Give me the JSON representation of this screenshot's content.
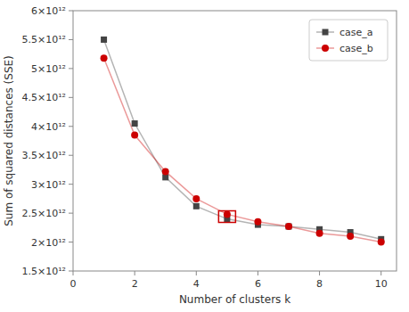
{
  "chart_data": {
    "type": "line",
    "xlabel": "Number of clusters k",
    "ylabel": "Sum of squared distances (SSE)",
    "x": [
      1,
      2,
      3,
      4,
      5,
      6,
      7,
      8,
      9,
      10
    ],
    "series": [
      {
        "name": "case_a",
        "color": "#444444",
        "marker": "square",
        "values": [
          5500000000000.0,
          4050000000000.0,
          3120000000000.0,
          2620000000000.0,
          2400000000000.0,
          2300000000000.0,
          2270000000000.0,
          2220000000000.0,
          2170000000000.0,
          2050000000000.0
        ]
      },
      {
        "name": "case_b",
        "color": "#cc0000",
        "marker": "circle",
        "values": [
          5180000000000.0,
          3850000000000.0,
          3220000000000.0,
          2750000000000.0,
          2480000000000.0,
          2350000000000.0,
          2270000000000.0,
          2150000000000.0,
          2100000000000.0,
          2000000000000.0
        ]
      }
    ],
    "xlim": [
      0,
      10.5
    ],
    "ylim": [
      1500000000000.0,
      6000000000000.0
    ],
    "xticks": [
      0,
      2,
      4,
      6,
      8,
      10
    ],
    "yticks": [
      {
        "value": 1500000000000.0,
        "label": "1.5×10¹²"
      },
      {
        "value": 2000000000000.0,
        "label": "2×10¹²"
      },
      {
        "value": 2500000000000.0,
        "label": "2.5×10¹²"
      },
      {
        "value": 3000000000000.0,
        "label": "3×10¹²"
      },
      {
        "value": 3500000000000.0,
        "label": "3.5×10¹²"
      },
      {
        "value": 4000000000000.0,
        "label": "4×10¹²"
      },
      {
        "value": 4500000000000.0,
        "label": "4.5×10¹²"
      },
      {
        "value": 5000000000000.0,
        "label": "5×10¹²"
      },
      {
        "value": 5500000000000.0,
        "label": "5.5×10¹²"
      },
      {
        "value": 6000000000000.0,
        "label": "6×10¹²"
      }
    ],
    "highlight": {
      "x": [
        4.725,
        5.275
      ],
      "y": [
        2340000000000.0,
        2540000000000.0
      ],
      "color": "#cc0000"
    },
    "legend": "upper right",
    "grid": false
  }
}
